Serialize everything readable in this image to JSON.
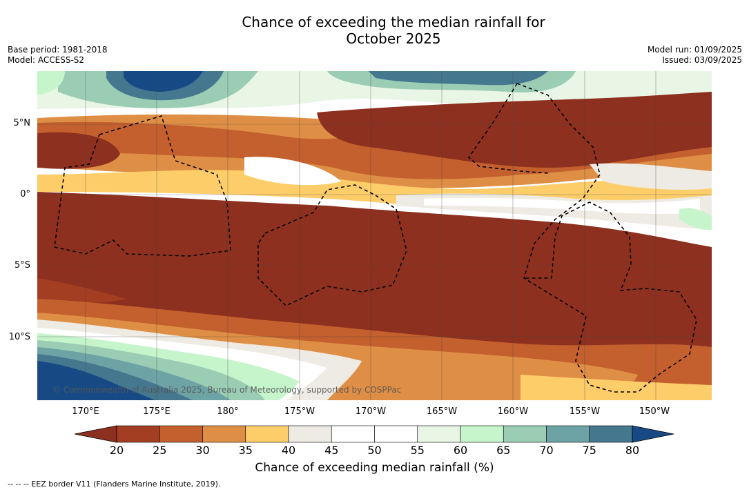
{
  "title_line1": "Chance of exceeding the median rainfall for",
  "title_line2": "October 2025",
  "base_period": "Base period: 1981-2018",
  "model": "Model: ACCESS-S2",
  "model_run": "Model run: 01/09/2025",
  "issued": "Issued: 03/09/2025",
  "lat_labels": [
    "5°N",
    "0°",
    "5°S",
    "10°S"
  ],
  "lon_labels": [
    "170°E",
    "175°E",
    "180°",
    "175°W",
    "170°W",
    "165°W",
    "160°W",
    "155°W",
    "150°W"
  ],
  "copyright": "© Commonwealth of Australia 2025, Bureau of Meteorology, supported by COSPPac",
  "colorbar": {
    "ticks": [
      "20",
      "25",
      "30",
      "35",
      "40",
      "45",
      "50",
      "55",
      "60",
      "65",
      "70",
      "75",
      "80"
    ],
    "colors": [
      "#a43e22",
      "#c4602e",
      "#df8f45",
      "#fdcd6a",
      "#eeebe4",
      "#ffffff",
      "#ffffff",
      "#e9f6e6",
      "#c6f5cb",
      "#9bcdb5",
      "#6ea3a6",
      "#45778f"
    ],
    "under_color": "#8e301f",
    "over_color": "#174a85",
    "label": "Chance of exceeding median rainfall (%)"
  },
  "footnote": "--  --  -- EEZ border V11 (Flanders Marine Institute, 2019)."
}
